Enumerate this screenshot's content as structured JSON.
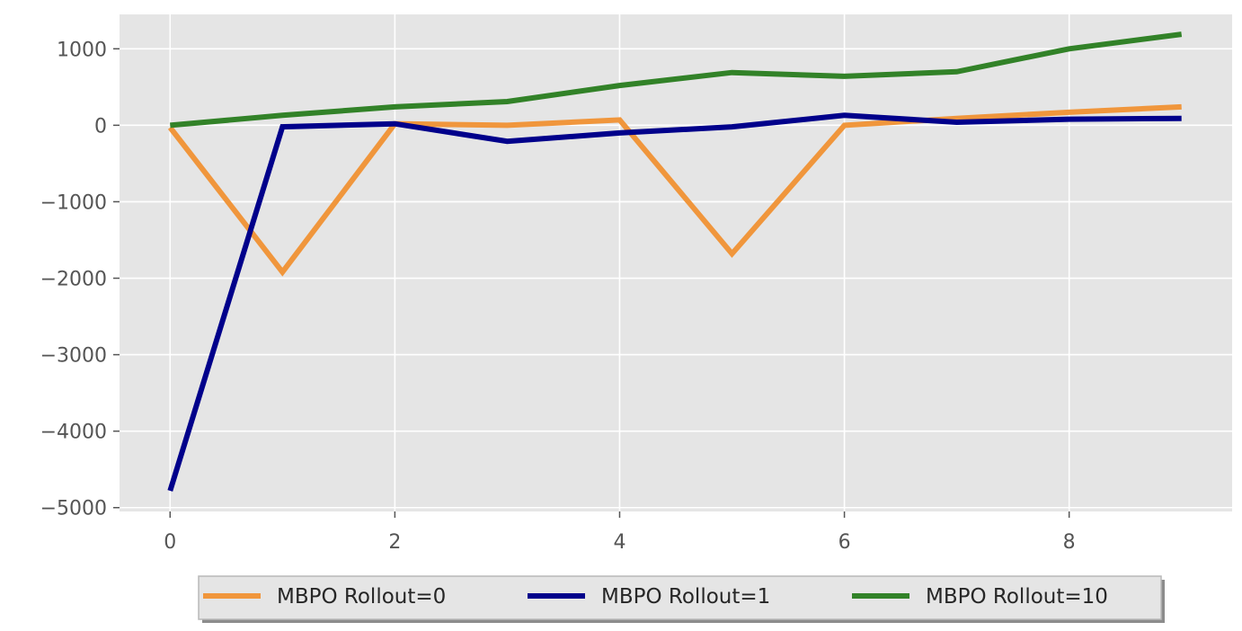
{
  "chart_data": {
    "type": "line",
    "title": "",
    "xlabel": "",
    "ylabel": "",
    "x": [
      0,
      1,
      2,
      3,
      4,
      5,
      6,
      7,
      8,
      9
    ],
    "xlim": [
      -0.45,
      9.45
    ],
    "ylim": [
      -5050,
      1450
    ],
    "xticks": [
      0,
      2,
      4,
      6,
      8
    ],
    "yticks": [
      1000,
      0,
      -1000,
      -2000,
      -3000,
      -4000,
      -5000
    ],
    "xtick_labels": [
      "0",
      "2",
      "4",
      "6",
      "8"
    ],
    "ytick_labels": [
      "1000",
      "0",
      "−1000",
      "−2000",
      "−3000",
      "−4000",
      "−5000"
    ],
    "grid": true,
    "legend_placement": "bottom-center, outside plot",
    "background": "#e5e5e5",
    "series": [
      {
        "name": "MBPO Rollout=0",
        "color": "#f0963c",
        "values": [
          -30,
          -1920,
          20,
          0,
          70,
          -1680,
          0,
          90,
          170,
          240
        ]
      },
      {
        "name": "MBPO Rollout=1",
        "color": "#00008b",
        "values": [
          -4780,
          -20,
          20,
          -210,
          -100,
          -20,
          130,
          40,
          80,
          90
        ]
      },
      {
        "name": "MBPO Rollout=10",
        "color": "#328228",
        "values": [
          0,
          130,
          240,
          310,
          520,
          690,
          640,
          700,
          1000,
          1190
        ]
      }
    ]
  }
}
